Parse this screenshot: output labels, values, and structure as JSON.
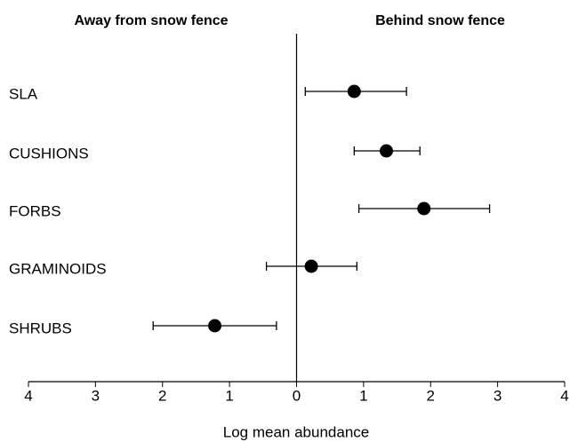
{
  "chart_data": {
    "type": "dot-interval",
    "annotations": [
      "Away from snow fence",
      "Behind snow fence"
    ],
    "x_label": "Log mean abundance",
    "categories": [
      "SLA",
      "CUSHIONS",
      "FORBS",
      "GRAMINOIDS",
      "SHRUBS"
    ],
    "values": [
      0.86,
      1.34,
      1.9,
      0.22,
      -1.22
    ],
    "lower": [
      0.13,
      0.86,
      0.93,
      -0.45,
      -2.14
    ],
    "upper": [
      1.64,
      1.84,
      2.88,
      0.9,
      -0.3
    ],
    "color": "#000000",
    "xlim": [
      -4,
      4
    ],
    "xticks": [
      {
        "value": -4,
        "label": "4"
      },
      {
        "value": -3,
        "label": "3"
      },
      {
        "value": -2,
        "label": "2"
      },
      {
        "value": -1,
        "label": "1"
      },
      0,
      1,
      2,
      3,
      4
    ]
  }
}
